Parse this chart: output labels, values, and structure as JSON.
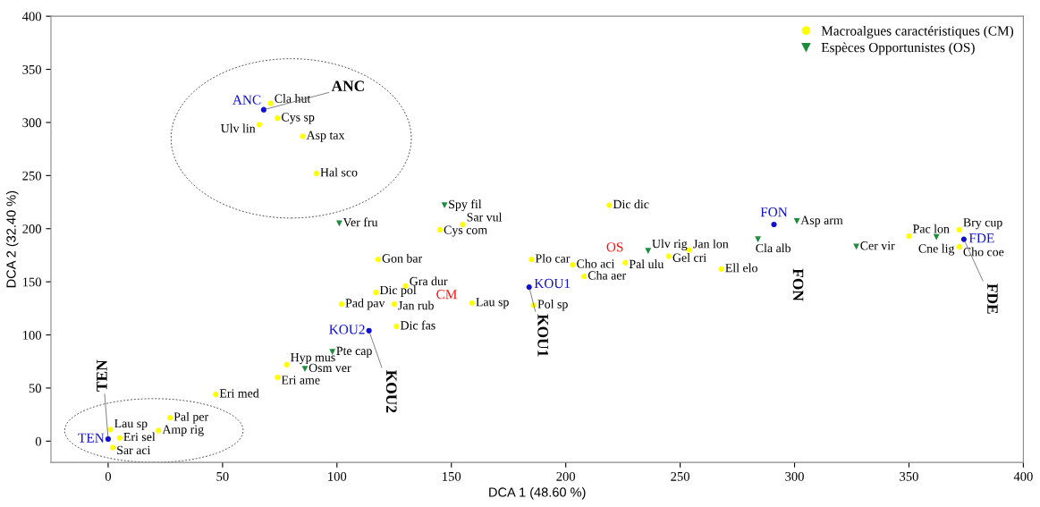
{
  "chart_data": {
    "type": "scatter",
    "xlabel": "DCA 1 (48.60 %)",
    "ylabel": "DCA 2 (32.40 %)",
    "xlim": [
      -25,
      400
    ],
    "ylim": [
      -20,
      400
    ],
    "xticks": [
      0,
      50,
      100,
      150,
      200,
      250,
      300,
      350,
      400
    ],
    "yticks": [
      0,
      50,
      100,
      150,
      200,
      250,
      300,
      350,
      400
    ],
    "grid": false,
    "legend": "top right",
    "series": [
      {
        "name": "Macroalgues caractéristiques (CM)",
        "color": "#ffff00",
        "marker": "circle",
        "x": [
          71,
          74,
          66,
          85,
          91,
          145,
          155,
          219,
          118,
          185,
          203,
          208,
          186,
          159,
          130,
          117,
          102,
          125,
          126,
          78,
          74,
          47,
          27,
          22,
          1,
          5,
          2,
          226,
          254,
          245,
          268,
          350,
          372,
          372
        ],
        "values": [
          318,
          304,
          298,
          287,
          252,
          199,
          204,
          222,
          171,
          171,
          166,
          155,
          128,
          130,
          146,
          140,
          129,
          129,
          108,
          72,
          60,
          44,
          22,
          10,
          11,
          3,
          -6,
          168,
          180,
          174,
          162,
          193,
          199,
          183
        ]
      },
      {
        "name": "Espèces Opportunistes (OS)",
        "color": "#1e8c3c",
        "marker": "triangle",
        "x": [
          147,
          101,
          98,
          86,
          236,
          284,
          301,
          327,
          362
        ],
        "values": [
          222,
          205,
          84,
          68,
          179,
          190,
          207,
          183,
          192
        ]
      },
      {
        "color": "#1010d0",
        "marker": "circle",
        "x": [
          68,
          0,
          374,
          291,
          184,
          114
        ],
        "values": [
          312,
          2,
          190,
          204,
          145,
          104
        ]
      }
    ],
    "annotations": [
      {
        "text": "Cla hut",
        "x": 71,
        "y": 318
      },
      {
        "text": "Cys sp",
        "x": 74,
        "y": 304
      },
      {
        "text": "Ulv lin",
        "x": 66,
        "y": 298
      },
      {
        "text": "Asp tax",
        "x": 85,
        "y": 287
      },
      {
        "text": "Hal sco",
        "x": 91,
        "y": 252
      },
      {
        "text": "Cys com",
        "x": 145,
        "y": 199
      },
      {
        "text": "Sar vul",
        "x": 155,
        "y": 204
      },
      {
        "text": "Dic dic",
        "x": 219,
        "y": 222
      },
      {
        "text": "Gon bar",
        "x": 118,
        "y": 171
      },
      {
        "text": "Plo car",
        "x": 185,
        "y": 171
      },
      {
        "text": "Cho aci",
        "x": 203,
        "y": 166
      },
      {
        "text": "Cha aer",
        "x": 208,
        "y": 155
      },
      {
        "text": "Pol sp",
        "x": 186,
        "y": 128
      },
      {
        "text": "Lau sp",
        "x": 159,
        "y": 130
      },
      {
        "text": "Gra dur",
        "x": 130,
        "y": 146
      },
      {
        "text": "Dic pol",
        "x": 117,
        "y": 140
      },
      {
        "text": "Pad pav",
        "x": 102,
        "y": 129
      },
      {
        "text": "Jan rub",
        "x": 125,
        "y": 129
      },
      {
        "text": "Dic fas",
        "x": 126,
        "y": 108
      },
      {
        "text": "Hyp mus",
        "x": 78,
        "y": 72
      },
      {
        "text": "Eri ame",
        "x": 74,
        "y": 60
      },
      {
        "text": "Eri med",
        "x": 47,
        "y": 44
      },
      {
        "text": "Pal per",
        "x": 27,
        "y": 22
      },
      {
        "text": "Amp rig",
        "x": 22,
        "y": 10
      },
      {
        "text": "Lau sp",
        "x": 1,
        "y": 11
      },
      {
        "text": "Eri sel",
        "x": 5,
        "y": 3
      },
      {
        "text": "Sar aci",
        "x": 2,
        "y": -6
      },
      {
        "text": "Pal ulu",
        "x": 226,
        "y": 168
      },
      {
        "text": "Jan lon",
        "x": 254,
        "y": 180
      },
      {
        "text": "Gel cri",
        "x": 245,
        "y": 174
      },
      {
        "text": "Ell elo",
        "x": 268,
        "y": 162
      },
      {
        "text": "Pac lon",
        "x": 350,
        "y": 193
      },
      {
        "text": "Bry cup",
        "x": 372,
        "y": 199
      },
      {
        "text": "Cho coe",
        "x": 372,
        "y": 183
      },
      {
        "text": "Spy fil",
        "x": 147,
        "y": 222
      },
      {
        "text": "Ver fru",
        "x": 101,
        "y": 205
      },
      {
        "text": "Pte cap",
        "x": 98,
        "y": 84
      },
      {
        "text": "Osm ver",
        "x": 86,
        "y": 68
      },
      {
        "text": "Ulv rig",
        "x": 236,
        "y": 179
      },
      {
        "text": "Cla alb",
        "x": 284,
        "y": 190
      },
      {
        "text": "Asp arm",
        "x": 301,
        "y": 207
      },
      {
        "text": "Cer vir",
        "x": 327,
        "y": 183
      },
      {
        "text": "Cne lig",
        "x": 362,
        "y": 192
      },
      {
        "text": "ANC",
        "x": 68,
        "y": 312
      },
      {
        "text": "TEN",
        "x": 0,
        "y": 2
      },
      {
        "text": "FDE",
        "x": 374,
        "y": 190
      },
      {
        "text": "FON",
        "x": 291,
        "y": 204
      },
      {
        "text": "KOU1",
        "x": 184,
        "y": 145
      },
      {
        "text": "KOU2",
        "x": 114,
        "y": 104
      },
      {
        "text": "ANC",
        "x": 68,
        "y": 312
      },
      {
        "text": "TEN",
        "x": 0,
        "y": 2
      },
      {
        "text": "KOU2",
        "x": 114,
        "y": 104
      },
      {
        "text": "KOU1",
        "x": 184,
        "y": 145
      },
      {
        "text": "FDE",
        "x": 374,
        "y": 190
      },
      "FON",
      "CM",
      "OS"
    ]
  }
}
